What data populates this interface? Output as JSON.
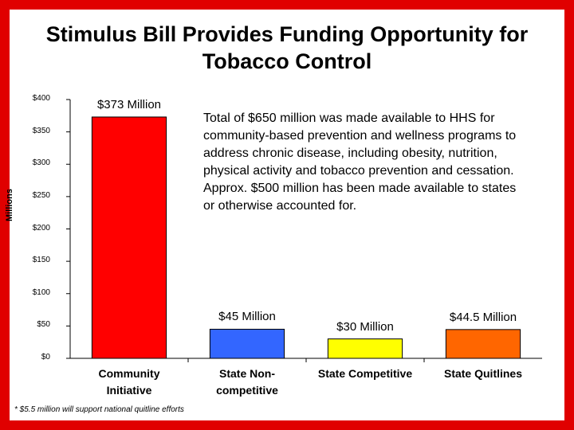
{
  "chart_data": {
    "type": "bar",
    "title": "Stimulus Bill Provides Funding Opportunity for Tobacco Control",
    "y_axis_label": "Millions",
    "categories": [
      "Community Initiative",
      "State Non-competitive",
      "State Competitive",
      "State Quitlines"
    ],
    "values": [
      373,
      45,
      30,
      44.5
    ],
    "value_labels": [
      "$373 Million",
      "$45 Million",
      "$30 Million",
      "$44.5 Million"
    ],
    "colors": [
      "#ff0000",
      "#3366ff",
      "#ffff00",
      "#ff6600"
    ],
    "ylim": [
      0,
      400
    ],
    "yticks": [
      {
        "value": 0,
        "label": "$0"
      },
      {
        "value": 50,
        "label": "$50"
      },
      {
        "value": 100,
        "label": "$100"
      },
      {
        "value": 150,
        "label": "$150"
      },
      {
        "value": 200,
        "label": "$200"
      },
      {
        "value": 250,
        "label": "$250"
      },
      {
        "value": 300,
        "label": "$300"
      },
      {
        "value": 350,
        "label": "$350"
      },
      {
        "value": 400,
        "label": "$400"
      }
    ],
    "annotation": "Total of $650 million was made available to HHS for community-based prevention and wellness programs to address chronic disease, including obesity, nutrition, physical activity and tobacco prevention and cessation.  Approx. $500 million has been made available to states or otherwise accounted for.",
    "footnote": "* $5.5 million will support national quitline efforts"
  }
}
